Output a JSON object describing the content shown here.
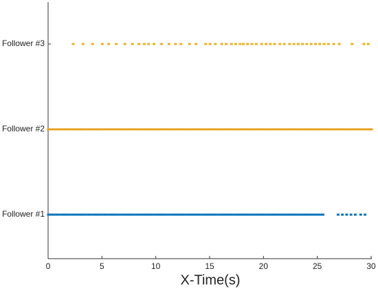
{
  "chart_data": {
    "type": "eventplot",
    "xlabel": "X-Time(s)",
    "categories": [
      "Follower #1",
      "Follower #2",
      "Follower #3"
    ],
    "series": [
      {
        "color": "#0072bd",
        "x": [
          0,
          0.25,
          0.5,
          0.75,
          1,
          1.25,
          1.5,
          1.75,
          2,
          2.25,
          2.5,
          2.75,
          3,
          3.25,
          3.5,
          3.75,
          4,
          4.25,
          4.5,
          4.75,
          5,
          5.25,
          5.5,
          5.75,
          6,
          6.25,
          6.5,
          6.75,
          7,
          7.25,
          7.5,
          7.75,
          8,
          8.25,
          8.5,
          8.75,
          9,
          9.25,
          9.5,
          9.75,
          10,
          10.25,
          10.5,
          10.75,
          11,
          11.25,
          11.5,
          11.75,
          12,
          12.25,
          12.5,
          12.75,
          13,
          13.25,
          13.5,
          13.75,
          14,
          14.25,
          14.5,
          14.75,
          15,
          15.25,
          15.5,
          15.75,
          16,
          16.25,
          16.5,
          16.75,
          17,
          17.25,
          17.5,
          17.75,
          18,
          18.25,
          18.5,
          18.75,
          19,
          19.25,
          19.5,
          19.75,
          20,
          20.25,
          20.5,
          20.75,
          21,
          21.25,
          21.5,
          21.75,
          22,
          22.25,
          22.5,
          22.75,
          23,
          23.25,
          23.5,
          23.75,
          24,
          24.25,
          24.5,
          24.75,
          25,
          25.25,
          25.5,
          26.9,
          27.3,
          27.7,
          28.1,
          28.5,
          29,
          29.4
        ]
      },
      {
        "color": "#e8a020",
        "x": [
          0,
          0.25,
          0.5,
          0.75,
          1,
          1.25,
          1.5,
          1.75,
          2,
          2.25,
          2.5,
          2.75,
          3,
          3.25,
          3.5,
          3.75,
          4,
          4.25,
          4.5,
          4.75,
          5,
          5.25,
          5.5,
          5.75,
          6,
          6.25,
          6.5,
          6.75,
          7,
          7.25,
          7.5,
          7.75,
          8,
          8.25,
          8.5,
          8.75,
          9,
          9.25,
          9.5,
          9.75,
          10,
          10.25,
          10.5,
          10.75,
          11,
          11.25,
          11.5,
          11.75,
          12,
          12.25,
          12.5,
          12.75,
          13,
          13.25,
          13.5,
          13.75,
          14,
          14.25,
          14.5,
          14.75,
          15,
          15.25,
          15.5,
          15.75,
          16,
          16.25,
          16.5,
          16.75,
          17,
          17.25,
          17.5,
          17.75,
          18,
          18.25,
          18.5,
          18.75,
          19,
          19.25,
          19.5,
          19.75,
          20,
          20.25,
          20.5,
          20.75,
          21,
          21.25,
          21.5,
          21.75,
          22,
          22.25,
          22.5,
          22.75,
          23,
          23.25,
          23.5,
          23.75,
          24,
          24.25,
          24.5,
          24.75,
          25,
          25.25,
          25.5,
          25.75,
          26,
          26.25,
          26.5,
          26.75,
          27,
          27.25,
          27.5,
          27.75,
          28,
          28.25,
          28.5,
          28.75,
          29,
          29.25,
          29.5,
          29.75,
          30
        ]
      },
      {
        "color": "#edb120",
        "x": [
          2.3,
          3.2,
          4.1,
          5,
          5.6,
          6.3,
          7.1,
          7.8,
          8.4,
          8.9,
          9.3,
          9.8,
          10.5,
          11.2,
          11.8,
          12.3,
          13.1,
          13.7,
          14.6,
          15,
          15.5,
          16.1,
          16.5,
          17,
          17.4,
          17.8,
          18.1,
          18.5,
          18.9,
          19.3,
          19.8,
          20.2,
          20.6,
          21,
          21.5,
          21.9,
          22.4,
          22.8,
          23.2,
          23.6,
          24,
          24.4,
          24.8,
          25.2,
          25.6,
          26,
          26.5,
          27,
          28.2,
          29.3,
          29.7
        ]
      }
    ],
    "xlim": [
      0,
      30
    ],
    "xticks": [
      0,
      5,
      10,
      15,
      20,
      25,
      30
    ]
  }
}
